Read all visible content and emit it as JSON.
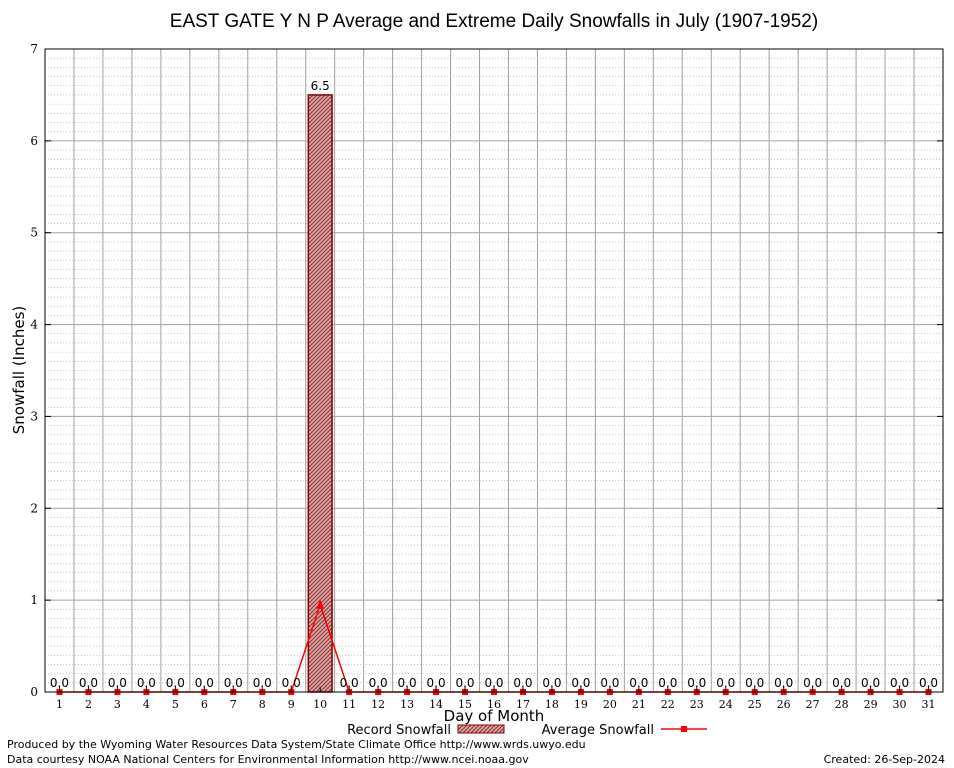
{
  "chart_data": {
    "type": "bar",
    "title": "EAST GATE Y N P Average and Extreme Daily Snowfalls in July (1907-1952)",
    "xlabel": "Day of Month",
    "ylabel": "Snowfall (Inches)",
    "ylim": [
      0,
      7
    ],
    "yticks": [
      "0",
      "1",
      "2",
      "3",
      "4",
      "5",
      "6",
      "7"
    ],
    "categories": [
      "1",
      "2",
      "3",
      "4",
      "5",
      "6",
      "7",
      "8",
      "9",
      "10",
      "11",
      "12",
      "13",
      "14",
      "15",
      "16",
      "17",
      "18",
      "19",
      "20",
      "21",
      "22",
      "23",
      "24",
      "25",
      "26",
      "27",
      "28",
      "29",
      "30",
      "31"
    ],
    "series": [
      {
        "name": "Record Snowfall",
        "kind": "bar",
        "values": [
          0.0,
          0.0,
          0.0,
          0.0,
          0.0,
          0.0,
          0.0,
          0.0,
          0.0,
          6.5,
          0.0,
          0.0,
          0.0,
          0.0,
          0.0,
          0.0,
          0.0,
          0.0,
          0.0,
          0.0,
          0.0,
          0.0,
          0.0,
          0.0,
          0.0,
          0.0,
          0.0,
          0.0,
          0.0,
          0.0,
          0.0
        ],
        "labels": [
          "0.0",
          "0.0",
          "0.0",
          "0.0",
          "0.0",
          "0.0",
          "0.0",
          "0.0",
          "0.0",
          "6.5",
          "0.0",
          "0.0",
          "0.0",
          "0.0",
          "0.0",
          "0.0",
          "0.0",
          "0.0",
          "0.0",
          "0.0",
          "0.0",
          "0.0",
          "0.0",
          "0.0",
          "0.0",
          "0.0",
          "0.0",
          "0.0",
          "0.0",
          "0.0",
          "0.0"
        ]
      },
      {
        "name": "Average Snowfall",
        "kind": "line",
        "values": [
          0,
          0,
          0,
          0,
          0,
          0,
          0,
          0,
          0,
          0.95,
          0,
          0,
          0,
          0,
          0,
          0,
          0,
          0,
          0,
          0,
          0,
          0,
          0,
          0,
          0,
          0,
          0,
          0,
          0,
          0,
          0
        ]
      }
    ],
    "grid": true,
    "legend_position": "bottom-center",
    "colors": {
      "bar_fill": "#c89090",
      "bar_edge": "#800000",
      "line": "#ff0000",
      "grid": "#a0a0a0"
    }
  },
  "footer": {
    "produced_by": "Produced by the Wyoming Water Resources Data System/State Climate Office http://www.wrds.uwyo.edu",
    "data_courtesy": "Data courtesy NOAA National Centers for Environmental Information http://www.ncei.noaa.gov",
    "created": "Created: 26-Sep-2024"
  }
}
